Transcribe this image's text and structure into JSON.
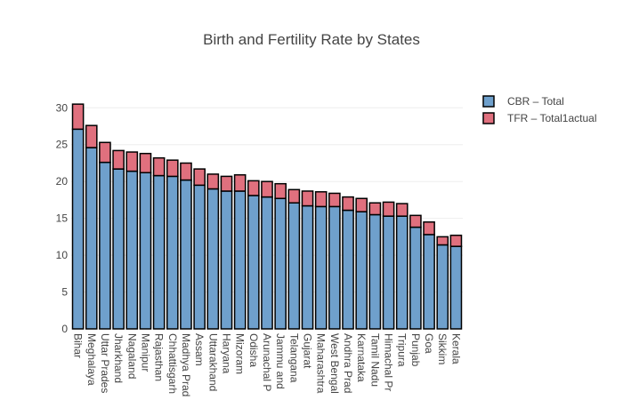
{
  "chart_data": {
    "type": "bar",
    "title": "Birth and Fertility Rate by States",
    "stacked": true,
    "categories": [
      "Bihar",
      "Meghalaya",
      "Uttar Prades",
      "Jharkhand",
      "Nagaland",
      "Manipur",
      "Rajasthan",
      "Chhattisgarh",
      "Madhya Prad",
      "Assam",
      "Uttarakhand",
      "Haryana",
      "Mizoram",
      "Odisha",
      "Arunachal P",
      "Jammu and",
      "Telangana",
      "Gujarat",
      "Maharashtra",
      "West Bengal",
      "Andhra Prad",
      "Karnataka",
      "Tamil Nadu",
      "Himachal Pr",
      "Tripura",
      "Punjab",
      "Goa",
      "Sikkim",
      "Kerala"
    ],
    "series": [
      {
        "name": "CBR – Total",
        "color": "#6fa0cc",
        "values": [
          27.1,
          24.6,
          22.6,
          21.7,
          21.4,
          21.2,
          20.8,
          20.7,
          20.2,
          19.5,
          19.0,
          18.7,
          18.7,
          18.1,
          17.9,
          17.7,
          17.1,
          16.7,
          16.6,
          16.6,
          16.1,
          15.9,
          15.5,
          15.3,
          15.3,
          13.8,
          12.8,
          11.4,
          11.2
        ]
      },
      {
        "name": "TFR – Total1actual",
        "color": "#e0707e",
        "values": [
          3.4,
          3.0,
          2.7,
          2.5,
          2.6,
          2.6,
          2.4,
          2.2,
          2.3,
          2.2,
          2.0,
          2.0,
          2.2,
          2.0,
          2.1,
          2.0,
          1.8,
          2.0,
          2.0,
          1.8,
          1.8,
          1.8,
          1.6,
          1.9,
          1.7,
          1.6,
          1.7,
          1.1,
          1.5
        ]
      }
    ],
    "xlabel": "",
    "ylabel": "",
    "ylim": [
      0,
      31
    ],
    "yticks": [
      0,
      5,
      10,
      15,
      20,
      25,
      30
    ],
    "grid": true,
    "legend_position": "top-right"
  }
}
